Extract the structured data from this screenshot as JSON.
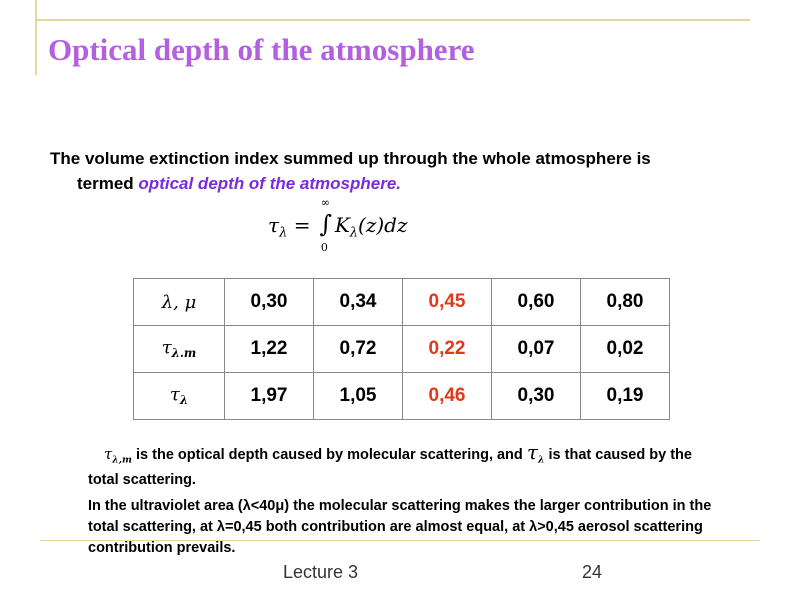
{
  "header": {
    "title": "Optical depth of the atmosphere"
  },
  "intro": {
    "text": "The volume extinction index summed up through the whole atmosphere is termed ",
    "emphasis": "optical depth of the atmosphere."
  },
  "formula": {
    "lhs": "τ",
    "lhs_sub": "λ",
    "equals": "=",
    "integral": "∫",
    "upper": "∞",
    "lower": "0",
    "integrand": "K",
    "integrand_sub": "λ",
    "rest": "(z)dz"
  },
  "table": {
    "row_headers": [
      {
        "symbol": "λ, μ"
      },
      {
        "symbol": "τ",
        "sub": "λ.m"
      },
      {
        "symbol": "τ",
        "sub": "λ"
      }
    ],
    "rows": [
      [
        "0,30",
        "0,34",
        "0,45",
        "0,60",
        "0,80"
      ],
      [
        "1,22",
        "0,72",
        "0,22",
        "0,07",
        "0,02"
      ],
      [
        "1,97",
        "1,05",
        "0,46",
        "0,30",
        "0,19"
      ]
    ]
  },
  "notes": [
    {
      "symbol": "τ",
      "sub": "λ,m",
      "text": " is the optical depth caused by molecular scattering, and ",
      "symbol2": "τ",
      "sub2": "λ",
      "text2": " is that caused by the total scattering."
    },
    {
      "text": "In the ultraviolet area (λ<40μ) the molecular scattering makes the larger contribution in the total scattering, at λ=0,45 both contribution are almost equal, at λ>0,45 aerosol scattering contribution prevails."
    }
  ],
  "footer": {
    "label": "Lecture 3",
    "page": "24"
  }
}
